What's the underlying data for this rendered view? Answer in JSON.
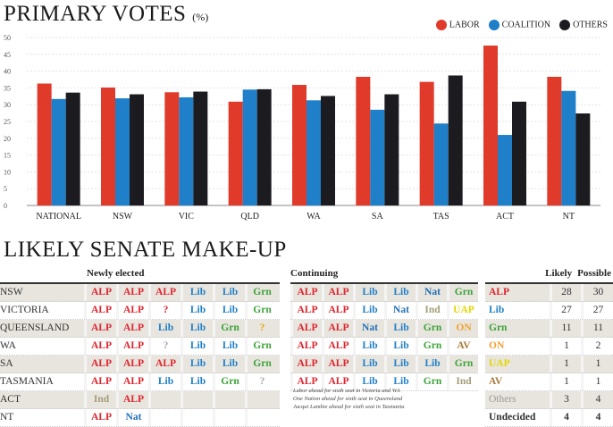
{
  "chart_data": {
    "type": "bar",
    "title": "PRIMARY VOTES",
    "title_unit": "(%)",
    "categories": [
      "NATIONAL",
      "NSW",
      "VIC",
      "QLD",
      "WA",
      "SA",
      "TAS",
      "ACT",
      "NT"
    ],
    "series": [
      {
        "name": "LABOR",
        "color": "#e03a2b",
        "values": [
          36.3,
          35.1,
          33.7,
          30.9,
          35.9,
          38.3,
          36.8,
          47.6,
          38.3
        ]
      },
      {
        "name": "COALITION",
        "color": "#1f7fc8",
        "values": [
          31.7,
          31.9,
          32.2,
          34.5,
          31.3,
          28.5,
          24.4,
          21.0,
          34.1
        ]
      },
      {
        "name": "OTHERS",
        "color": "#1c1c20",
        "values": [
          33.6,
          33.1,
          33.9,
          34.6,
          32.6,
          33.1,
          38.7,
          30.9,
          27.4
        ]
      }
    ],
    "ylim": [
      0,
      50
    ],
    "yticks": [
      0,
      5,
      10,
      15,
      20,
      25,
      30,
      35,
      40,
      45,
      50
    ],
    "grid": true,
    "legend": "top-right"
  },
  "senate": {
    "title": "LIKELY SENATE MAKE-UP",
    "newly_header": "Newly elected",
    "continuing_header": "Continuing",
    "likely_header": "Likely",
    "possible_header": "Possible",
    "colors": {
      "ALP": "#e0252f",
      "Lib": "#1f7fc8",
      "Nat": "#1f6fb8",
      "Grn": "#3ea33a",
      "Ind": "#a39d78",
      "UAP": "#e6d600",
      "ON": "#f0a030",
      "AV": "#a87a3a",
      "?": "#e0252f",
      "Others": "#999999",
      "Undecided": "#333333"
    },
    "newly": [
      {
        "state": "NSW",
        "seats": [
          "ALP",
          "ALP",
          "ALP",
          "Lib",
          "Lib",
          "Grn"
        ]
      },
      {
        "state": "VICTORIA",
        "seats": [
          "ALP",
          "ALP",
          "?",
          "Lib",
          "Lib",
          "Grn"
        ]
      },
      {
        "state": "QUEENSLAND",
        "seats": [
          "ALP",
          "ALP",
          "Lib",
          "Lib",
          "Grn",
          "?"
        ]
      },
      {
        "state": "WA",
        "seats": [
          "ALP",
          "ALP",
          "?",
          "Lib",
          "Lib",
          "Grn"
        ]
      },
      {
        "state": "SA",
        "seats": [
          "ALP",
          "ALP",
          "ALP",
          "Lib",
          "Lib",
          "Grn"
        ]
      },
      {
        "state": "TASMANIA",
        "seats": [
          "ALP",
          "ALP",
          "Lib",
          "Lib",
          "Grn",
          "?"
        ]
      },
      {
        "state": "ACT",
        "seats": [
          "Ind",
          "ALP",
          "",
          "",
          "",
          ""
        ]
      },
      {
        "state": "NT",
        "seats": [
          "ALP",
          "Nat",
          "",
          "",
          "",
          ""
        ]
      }
    ],
    "continuing": [
      [
        "ALP",
        "ALP",
        "Lib",
        "Lib",
        "Nat",
        "Grn"
      ],
      [
        "ALP",
        "ALP",
        "Lib",
        "Nat",
        "Ind",
        "UAP"
      ],
      [
        "ALP",
        "ALP",
        "Nat",
        "Lib",
        "Grn",
        "ON"
      ],
      [
        "ALP",
        "ALP",
        "Lib",
        "Lib",
        "Grn",
        "AV"
      ],
      [
        "ALP",
        "ALP",
        "Lib",
        "Lib",
        "Lib",
        "Grn"
      ],
      [
        "ALP",
        "ALP",
        "Lib",
        "Lib",
        "Grn",
        "Ind"
      ]
    ],
    "totals": [
      {
        "party": "ALP",
        "likely": "28",
        "possible": "30"
      },
      {
        "party": "Lib",
        "likely": "27",
        "possible": "27"
      },
      {
        "party": "Grn",
        "likely": "11",
        "possible": "11"
      },
      {
        "party": "ON",
        "likely": "1",
        "possible": "2"
      },
      {
        "party": "UAP",
        "likely": "1",
        "possible": "1"
      },
      {
        "party": "AV",
        "likely": "1",
        "possible": "1"
      },
      {
        "party": "Others",
        "likely": "3",
        "possible": "4"
      },
      {
        "party": "Undecided",
        "likely": "4",
        "possible": "4"
      }
    ],
    "footnotes": [
      "Labor ahead for sixth seat in Victoria and WA",
      "One Nation ahead for sixth seat in Queensland",
      "Jacqui Lambie ahead for sixth seat in Tasmania"
    ]
  }
}
